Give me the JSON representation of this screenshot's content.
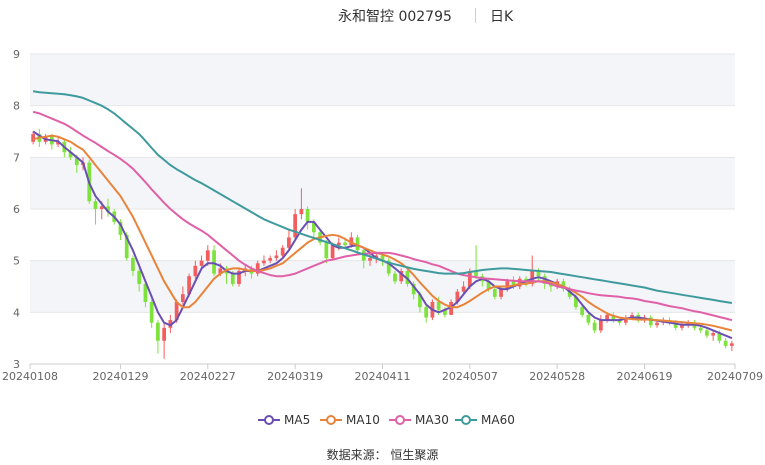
{
  "header": {
    "title": "永和智控 002795",
    "period": "日K"
  },
  "source": "数据来源： 恒生聚源",
  "chart_data": {
    "type": "candlestick",
    "ylim": [
      3,
      9
    ],
    "yticks": [
      "3",
      "4",
      "5",
      "6",
      "7",
      "8",
      "9"
    ],
    "xticks": [
      "20240108",
      "20240129",
      "20240227",
      "20240319",
      "20240411",
      "20240507",
      "20240528",
      "20240619",
      "20240709"
    ],
    "xtick_index": [
      0,
      14,
      28,
      42,
      56,
      70,
      84,
      98,
      112
    ],
    "grid": true,
    "legend_position": "bottom",
    "up_color": "#f25e5e",
    "down_color": "#7ee23c",
    "candles": [
      [
        7.3,
        7.45,
        7.5,
        7.25
      ],
      [
        7.45,
        7.3,
        7.55,
        7.2
      ],
      [
        7.3,
        7.4,
        7.45,
        7.25
      ],
      [
        7.4,
        7.25,
        7.45,
        7.15
      ],
      [
        7.25,
        7.3,
        7.4,
        7.2
      ],
      [
        7.3,
        7.1,
        7.35,
        7.0
      ],
      [
        7.1,
        7.0,
        7.2,
        6.95
      ],
      [
        7.0,
        6.85,
        7.05,
        6.7
      ],
      [
        6.85,
        6.9,
        7.0,
        6.75
      ],
      [
        6.9,
        6.15,
        6.95,
        6.1
      ],
      [
        6.15,
        6.0,
        6.2,
        5.7
      ],
      [
        6.0,
        6.05,
        6.15,
        5.8
      ],
      [
        6.05,
        5.95,
        6.2,
        5.85
      ],
      [
        5.95,
        5.75,
        6.0,
        5.7
      ],
      [
        5.75,
        5.5,
        5.8,
        5.4
      ],
      [
        5.5,
        5.05,
        5.55,
        5.0
      ],
      [
        5.05,
        4.8,
        5.1,
        4.7
      ],
      [
        4.8,
        4.55,
        4.85,
        4.4
      ],
      [
        4.55,
        4.2,
        4.6,
        4.1
      ],
      [
        4.2,
        3.8,
        4.25,
        3.7
      ],
      [
        3.8,
        3.45,
        3.85,
        3.2
      ],
      [
        3.45,
        3.7,
        3.8,
        3.1
      ],
      [
        3.7,
        3.85,
        3.95,
        3.6
      ],
      [
        3.85,
        4.2,
        4.25,
        3.8
      ],
      [
        4.2,
        4.35,
        4.5,
        4.15
      ],
      [
        4.35,
        4.7,
        4.75,
        4.3
      ],
      [
        4.7,
        4.9,
        5.0,
        4.65
      ],
      [
        4.9,
        5.0,
        5.1,
        4.85
      ],
      [
        5.0,
        5.2,
        5.3,
        4.9
      ],
      [
        5.2,
        4.75,
        5.3,
        4.7
      ],
      [
        4.75,
        4.85,
        4.95,
        4.7
      ],
      [
        4.85,
        4.75,
        4.9,
        4.55
      ],
      [
        4.75,
        4.55,
        4.8,
        4.5
      ],
      [
        4.55,
        4.8,
        4.85,
        4.5
      ],
      [
        4.8,
        4.85,
        4.9,
        4.7
      ],
      [
        4.85,
        4.75,
        4.9,
        4.65
      ],
      [
        4.75,
        4.95,
        5.0,
        4.7
      ],
      [
        4.95,
        5.0,
        5.1,
        4.9
      ],
      [
        5.0,
        5.05,
        5.1,
        4.95
      ],
      [
        5.05,
        5.1,
        5.2,
        5.0
      ],
      [
        5.1,
        5.25,
        5.3,
        5.05
      ],
      [
        5.25,
        5.45,
        5.6,
        5.2
      ],
      [
        5.45,
        5.9,
        6.0,
        5.4
      ],
      [
        5.9,
        6.0,
        6.4,
        5.8
      ],
      [
        6.0,
        5.75,
        6.05,
        5.6
      ],
      [
        5.75,
        5.55,
        5.8,
        5.4
      ],
      [
        5.55,
        5.35,
        5.6,
        5.3
      ],
      [
        5.35,
        5.05,
        5.4,
        4.95
      ],
      [
        5.05,
        5.3,
        5.35,
        5.0
      ],
      [
        5.3,
        5.35,
        5.45,
        5.2
      ],
      [
        5.35,
        5.3,
        5.45,
        5.25
      ],
      [
        5.3,
        5.45,
        5.55,
        5.25
      ],
      [
        5.45,
        5.2,
        5.5,
        5.1
      ],
      [
        5.2,
        5.0,
        5.25,
        4.85
      ],
      [
        5.0,
        5.05,
        5.15,
        4.9
      ],
      [
        5.05,
        5.1,
        5.15,
        4.95
      ],
      [
        5.1,
        5.0,
        5.15,
        4.9
      ],
      [
        5.0,
        4.75,
        5.05,
        4.7
      ],
      [
        4.75,
        4.6,
        4.8,
        4.55
      ],
      [
        4.6,
        4.8,
        4.85,
        4.55
      ],
      [
        4.8,
        4.55,
        4.85,
        4.5
      ],
      [
        4.55,
        4.35,
        4.6,
        4.25
      ],
      [
        4.35,
        4.1,
        4.4,
        4.0
      ],
      [
        4.1,
        3.9,
        4.15,
        3.8
      ],
      [
        3.9,
        4.2,
        4.25,
        3.85
      ],
      [
        4.2,
        4.05,
        4.3,
        3.95
      ],
      [
        4.05,
        3.95,
        4.1,
        3.9
      ],
      [
        3.95,
        4.2,
        4.25,
        3.95
      ],
      [
        4.2,
        4.4,
        4.45,
        4.15
      ],
      [
        4.4,
        4.5,
        4.6,
        4.35
      ],
      [
        4.5,
        4.8,
        4.85,
        4.45
      ],
      [
        4.8,
        4.7,
        5.3,
        4.65
      ],
      [
        4.7,
        4.6,
        4.75,
        4.5
      ],
      [
        4.6,
        4.45,
        4.65,
        4.4
      ],
      [
        4.45,
        4.3,
        4.5,
        4.25
      ],
      [
        4.3,
        4.45,
        4.5,
        4.25
      ],
      [
        4.45,
        4.6,
        4.65,
        4.4
      ],
      [
        4.6,
        4.5,
        4.7,
        4.45
      ],
      [
        4.5,
        4.65,
        4.7,
        4.45
      ],
      [
        4.65,
        4.55,
        4.7,
        4.5
      ],
      [
        4.55,
        4.8,
        5.1,
        4.5
      ],
      [
        4.8,
        4.7,
        4.85,
        4.6
      ],
      [
        4.7,
        4.55,
        4.75,
        4.45
      ],
      [
        4.55,
        4.5,
        4.6,
        4.4
      ],
      [
        4.5,
        4.6,
        4.65,
        4.45
      ],
      [
        4.6,
        4.45,
        4.65,
        4.4
      ],
      [
        4.45,
        4.3,
        4.5,
        4.25
      ],
      [
        4.3,
        4.1,
        4.35,
        4.05
      ],
      [
        4.1,
        3.95,
        4.15,
        3.9
      ],
      [
        3.95,
        3.8,
        4.0,
        3.75
      ],
      [
        3.8,
        3.65,
        3.85,
        3.6
      ],
      [
        3.65,
        3.85,
        3.95,
        3.6
      ],
      [
        3.85,
        3.95,
        4.0,
        3.8
      ],
      [
        3.95,
        3.85,
        4.0,
        3.8
      ],
      [
        3.85,
        3.8,
        3.9,
        3.75
      ],
      [
        3.8,
        3.9,
        3.95,
        3.75
      ],
      [
        3.9,
        3.95,
        4.0,
        3.85
      ],
      [
        3.95,
        3.85,
        4.0,
        3.8
      ],
      [
        3.85,
        3.9,
        3.95,
        3.8
      ],
      [
        3.9,
        3.75,
        3.95,
        3.7
      ],
      [
        3.75,
        3.8,
        3.85,
        3.7
      ],
      [
        3.8,
        3.85,
        3.9,
        3.75
      ],
      [
        3.85,
        3.8,
        3.9,
        3.75
      ],
      [
        3.8,
        3.7,
        3.85,
        3.65
      ],
      [
        3.7,
        3.75,
        3.8,
        3.65
      ],
      [
        3.75,
        3.8,
        3.85,
        3.7
      ],
      [
        3.8,
        3.7,
        3.85,
        3.65
      ],
      [
        3.7,
        3.65,
        3.75,
        3.6
      ],
      [
        3.65,
        3.55,
        3.7,
        3.5
      ],
      [
        3.55,
        3.6,
        3.65,
        3.45
      ],
      [
        3.6,
        3.45,
        3.65,
        3.4
      ],
      [
        3.45,
        3.35,
        3.5,
        3.3
      ],
      [
        3.35,
        3.4,
        3.45,
        3.25
      ]
    ],
    "series": [
      {
        "name": "MA5",
        "color": "#6a4fb3",
        "values": [
          7.5,
          7.42,
          7.35,
          7.33,
          7.31,
          7.2,
          7.1,
          7.0,
          6.9,
          6.5,
          6.25,
          6.1,
          5.95,
          5.85,
          5.7,
          5.45,
          5.2,
          4.9,
          4.6,
          4.3,
          4.0,
          3.8,
          3.75,
          3.85,
          4.1,
          4.35,
          4.6,
          4.85,
          4.95,
          4.95,
          4.9,
          4.8,
          4.75,
          4.75,
          4.8,
          4.8,
          4.8,
          4.85,
          4.9,
          4.95,
          5.05,
          5.2,
          5.4,
          5.6,
          5.75,
          5.75,
          5.6,
          5.45,
          5.3,
          5.25,
          5.25,
          5.28,
          5.3,
          5.25,
          5.15,
          5.05,
          5.0,
          4.95,
          4.85,
          4.75,
          4.65,
          4.5,
          4.35,
          4.15,
          4.05,
          4.0,
          4.05,
          4.1,
          4.2,
          4.35,
          4.5,
          4.6,
          4.65,
          4.6,
          4.5,
          4.45,
          4.45,
          4.5,
          4.55,
          4.6,
          4.65,
          4.68,
          4.65,
          4.6,
          4.55,
          4.5,
          4.4,
          4.3,
          4.15,
          4.0,
          3.9,
          3.85,
          3.85,
          3.85,
          3.85,
          3.88,
          3.9,
          3.9,
          3.88,
          3.86,
          3.84,
          3.82,
          3.8,
          3.78,
          3.76,
          3.76,
          3.76,
          3.74,
          3.7,
          3.65,
          3.6,
          3.55,
          3.5
        ]
      },
      {
        "name": "MA10",
        "color": "#e8843a",
        "values": [
          7.35,
          7.38,
          7.4,
          7.42,
          7.4,
          7.35,
          7.3,
          7.22,
          7.15,
          7.0,
          6.85,
          6.7,
          6.55,
          6.4,
          6.25,
          6.05,
          5.85,
          5.6,
          5.35,
          5.1,
          4.85,
          4.6,
          4.4,
          4.2,
          4.1,
          4.1,
          4.2,
          4.35,
          4.5,
          4.65,
          4.75,
          4.82,
          4.85,
          4.85,
          4.82,
          4.8,
          4.8,
          4.82,
          4.85,
          4.9,
          4.95,
          5.05,
          5.15,
          5.25,
          5.35,
          5.42,
          5.45,
          5.48,
          5.5,
          5.48,
          5.42,
          5.35,
          5.3,
          5.25,
          5.2,
          5.15,
          5.12,
          5.08,
          5.02,
          4.95,
          4.85,
          4.72,
          4.58,
          4.45,
          4.32,
          4.22,
          4.15,
          4.1,
          4.1,
          4.15,
          4.22,
          4.3,
          4.38,
          4.45,
          4.5,
          4.5,
          4.5,
          4.52,
          4.55,
          4.55,
          4.58,
          4.6,
          4.6,
          4.58,
          4.55,
          4.5,
          4.45,
          4.38,
          4.3,
          4.2,
          4.12,
          4.05,
          3.98,
          3.93,
          3.9,
          3.88,
          3.87,
          3.86,
          3.86,
          3.86,
          3.85,
          3.84,
          3.83,
          3.82,
          3.81,
          3.8,
          3.79,
          3.78,
          3.76,
          3.74,
          3.71,
          3.68,
          3.65
        ]
      },
      {
        "name": "MA30",
        "color": "#e060a8",
        "values": [
          7.88,
          7.85,
          7.8,
          7.75,
          7.7,
          7.65,
          7.58,
          7.5,
          7.42,
          7.35,
          7.28,
          7.2,
          7.12,
          7.05,
          6.97,
          6.88,
          6.78,
          6.65,
          6.52,
          6.38,
          6.25,
          6.12,
          6.0,
          5.9,
          5.8,
          5.72,
          5.65,
          5.58,
          5.5,
          5.4,
          5.3,
          5.2,
          5.1,
          5.0,
          4.92,
          4.85,
          4.8,
          4.76,
          4.72,
          4.7,
          4.7,
          4.72,
          4.75,
          4.8,
          4.85,
          4.9,
          4.95,
          5.0,
          5.02,
          5.05,
          5.08,
          5.1,
          5.12,
          5.13,
          5.14,
          5.15,
          5.15,
          5.15,
          5.13,
          5.1,
          5.07,
          5.03,
          5.0,
          4.97,
          4.93,
          4.9,
          4.85,
          4.8,
          4.75,
          4.72,
          4.7,
          4.68,
          4.66,
          4.65,
          4.64,
          4.63,
          4.62,
          4.61,
          4.6,
          4.6,
          4.6,
          4.6,
          4.58,
          4.55,
          4.5,
          4.48,
          4.45,
          4.42,
          4.4,
          4.37,
          4.35,
          4.33,
          4.32,
          4.31,
          4.3,
          4.28,
          4.27,
          4.25,
          4.22,
          4.2,
          4.18,
          4.15,
          4.12,
          4.1,
          4.08,
          4.05,
          4.02,
          4.0,
          3.97,
          3.94,
          3.91,
          3.88,
          3.85
        ]
      },
      {
        "name": "MA60",
        "color": "#3f9a9e",
        "values": [
          8.28,
          8.26,
          8.25,
          8.24,
          8.23,
          8.22,
          8.2,
          8.18,
          8.15,
          8.1,
          8.05,
          8.0,
          7.93,
          7.85,
          7.75,
          7.65,
          7.55,
          7.45,
          7.32,
          7.18,
          7.05,
          6.95,
          6.85,
          6.77,
          6.7,
          6.63,
          6.56,
          6.5,
          6.43,
          6.36,
          6.29,
          6.22,
          6.15,
          6.08,
          6.01,
          5.94,
          5.87,
          5.8,
          5.75,
          5.7,
          5.65,
          5.6,
          5.56,
          5.52,
          5.48,
          5.44,
          5.4,
          5.36,
          5.32,
          5.28,
          5.24,
          5.2,
          5.16,
          5.12,
          5.08,
          5.04,
          5.0,
          4.96,
          4.93,
          4.9,
          4.87,
          4.84,
          4.82,
          4.8,
          4.78,
          4.76,
          4.75,
          4.75,
          4.75,
          4.76,
          4.78,
          4.8,
          4.82,
          4.83,
          4.84,
          4.85,
          4.85,
          4.84,
          4.83,
          4.82,
          4.81,
          4.8,
          4.79,
          4.78,
          4.76,
          4.74,
          4.72,
          4.7,
          4.68,
          4.66,
          4.64,
          4.62,
          4.6,
          4.58,
          4.56,
          4.54,
          4.52,
          4.5,
          4.48,
          4.45,
          4.42,
          4.4,
          4.38,
          4.36,
          4.34,
          4.32,
          4.3,
          4.28,
          4.26,
          4.24,
          4.22,
          4.2,
          4.18
        ]
      }
    ]
  }
}
